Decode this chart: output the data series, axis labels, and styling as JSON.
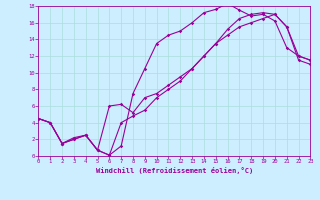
{
  "title": "",
  "xlabel": "Windchill (Refroidissement éolien,°C)",
  "xlim": [
    0,
    23
  ],
  "ylim": [
    0,
    18
  ],
  "xticks": [
    0,
    1,
    2,
    3,
    4,
    5,
    6,
    7,
    8,
    9,
    10,
    11,
    12,
    13,
    14,
    15,
    16,
    17,
    18,
    19,
    20,
    21,
    22,
    23
  ],
  "yticks": [
    0,
    2,
    4,
    6,
    8,
    10,
    12,
    14,
    16,
    18
  ],
  "bg_color": "#cceeff",
  "line_color": "#990099",
  "line1_x": [
    0,
    1,
    2,
    3,
    4,
    5,
    6,
    7,
    8,
    9,
    10,
    11,
    12,
    13,
    14,
    15,
    16,
    17,
    18,
    19,
    20,
    21,
    22,
    23
  ],
  "line1_y": [
    4.5,
    4.0,
    1.5,
    2.2,
    2.5,
    0.7,
    0.1,
    1.2,
    7.5,
    10.5,
    13.5,
    14.5,
    15.0,
    16.0,
    17.2,
    17.6,
    18.3,
    17.5,
    16.8,
    17.0,
    16.2,
    13.0,
    12.0,
    11.5
  ],
  "line2_x": [
    0,
    1,
    2,
    3,
    4,
    5,
    6,
    7,
    8,
    9,
    10,
    11,
    12,
    13,
    14,
    15,
    16,
    17,
    18,
    19,
    20,
    21,
    22,
    23
  ],
  "line2_y": [
    4.5,
    4.0,
    1.5,
    2.0,
    2.5,
    0.7,
    6.0,
    6.2,
    5.2,
    7.0,
    7.5,
    8.5,
    9.5,
    10.5,
    12.0,
    13.5,
    15.2,
    16.5,
    17.0,
    17.2,
    17.0,
    15.5,
    12.0,
    11.5
  ],
  "line3_x": [
    0,
    1,
    2,
    3,
    4,
    5,
    6,
    7,
    8,
    9,
    10,
    11,
    12,
    13,
    14,
    15,
    16,
    17,
    18,
    19,
    20,
    21,
    22,
    23
  ],
  "line3_y": [
    4.5,
    4.0,
    1.5,
    2.0,
    2.5,
    0.7,
    0.1,
    4.0,
    4.8,
    5.5,
    7.0,
    8.0,
    9.0,
    10.5,
    12.0,
    13.5,
    14.5,
    15.5,
    16.0,
    16.5,
    17.0,
    15.5,
    11.5,
    11.0
  ]
}
